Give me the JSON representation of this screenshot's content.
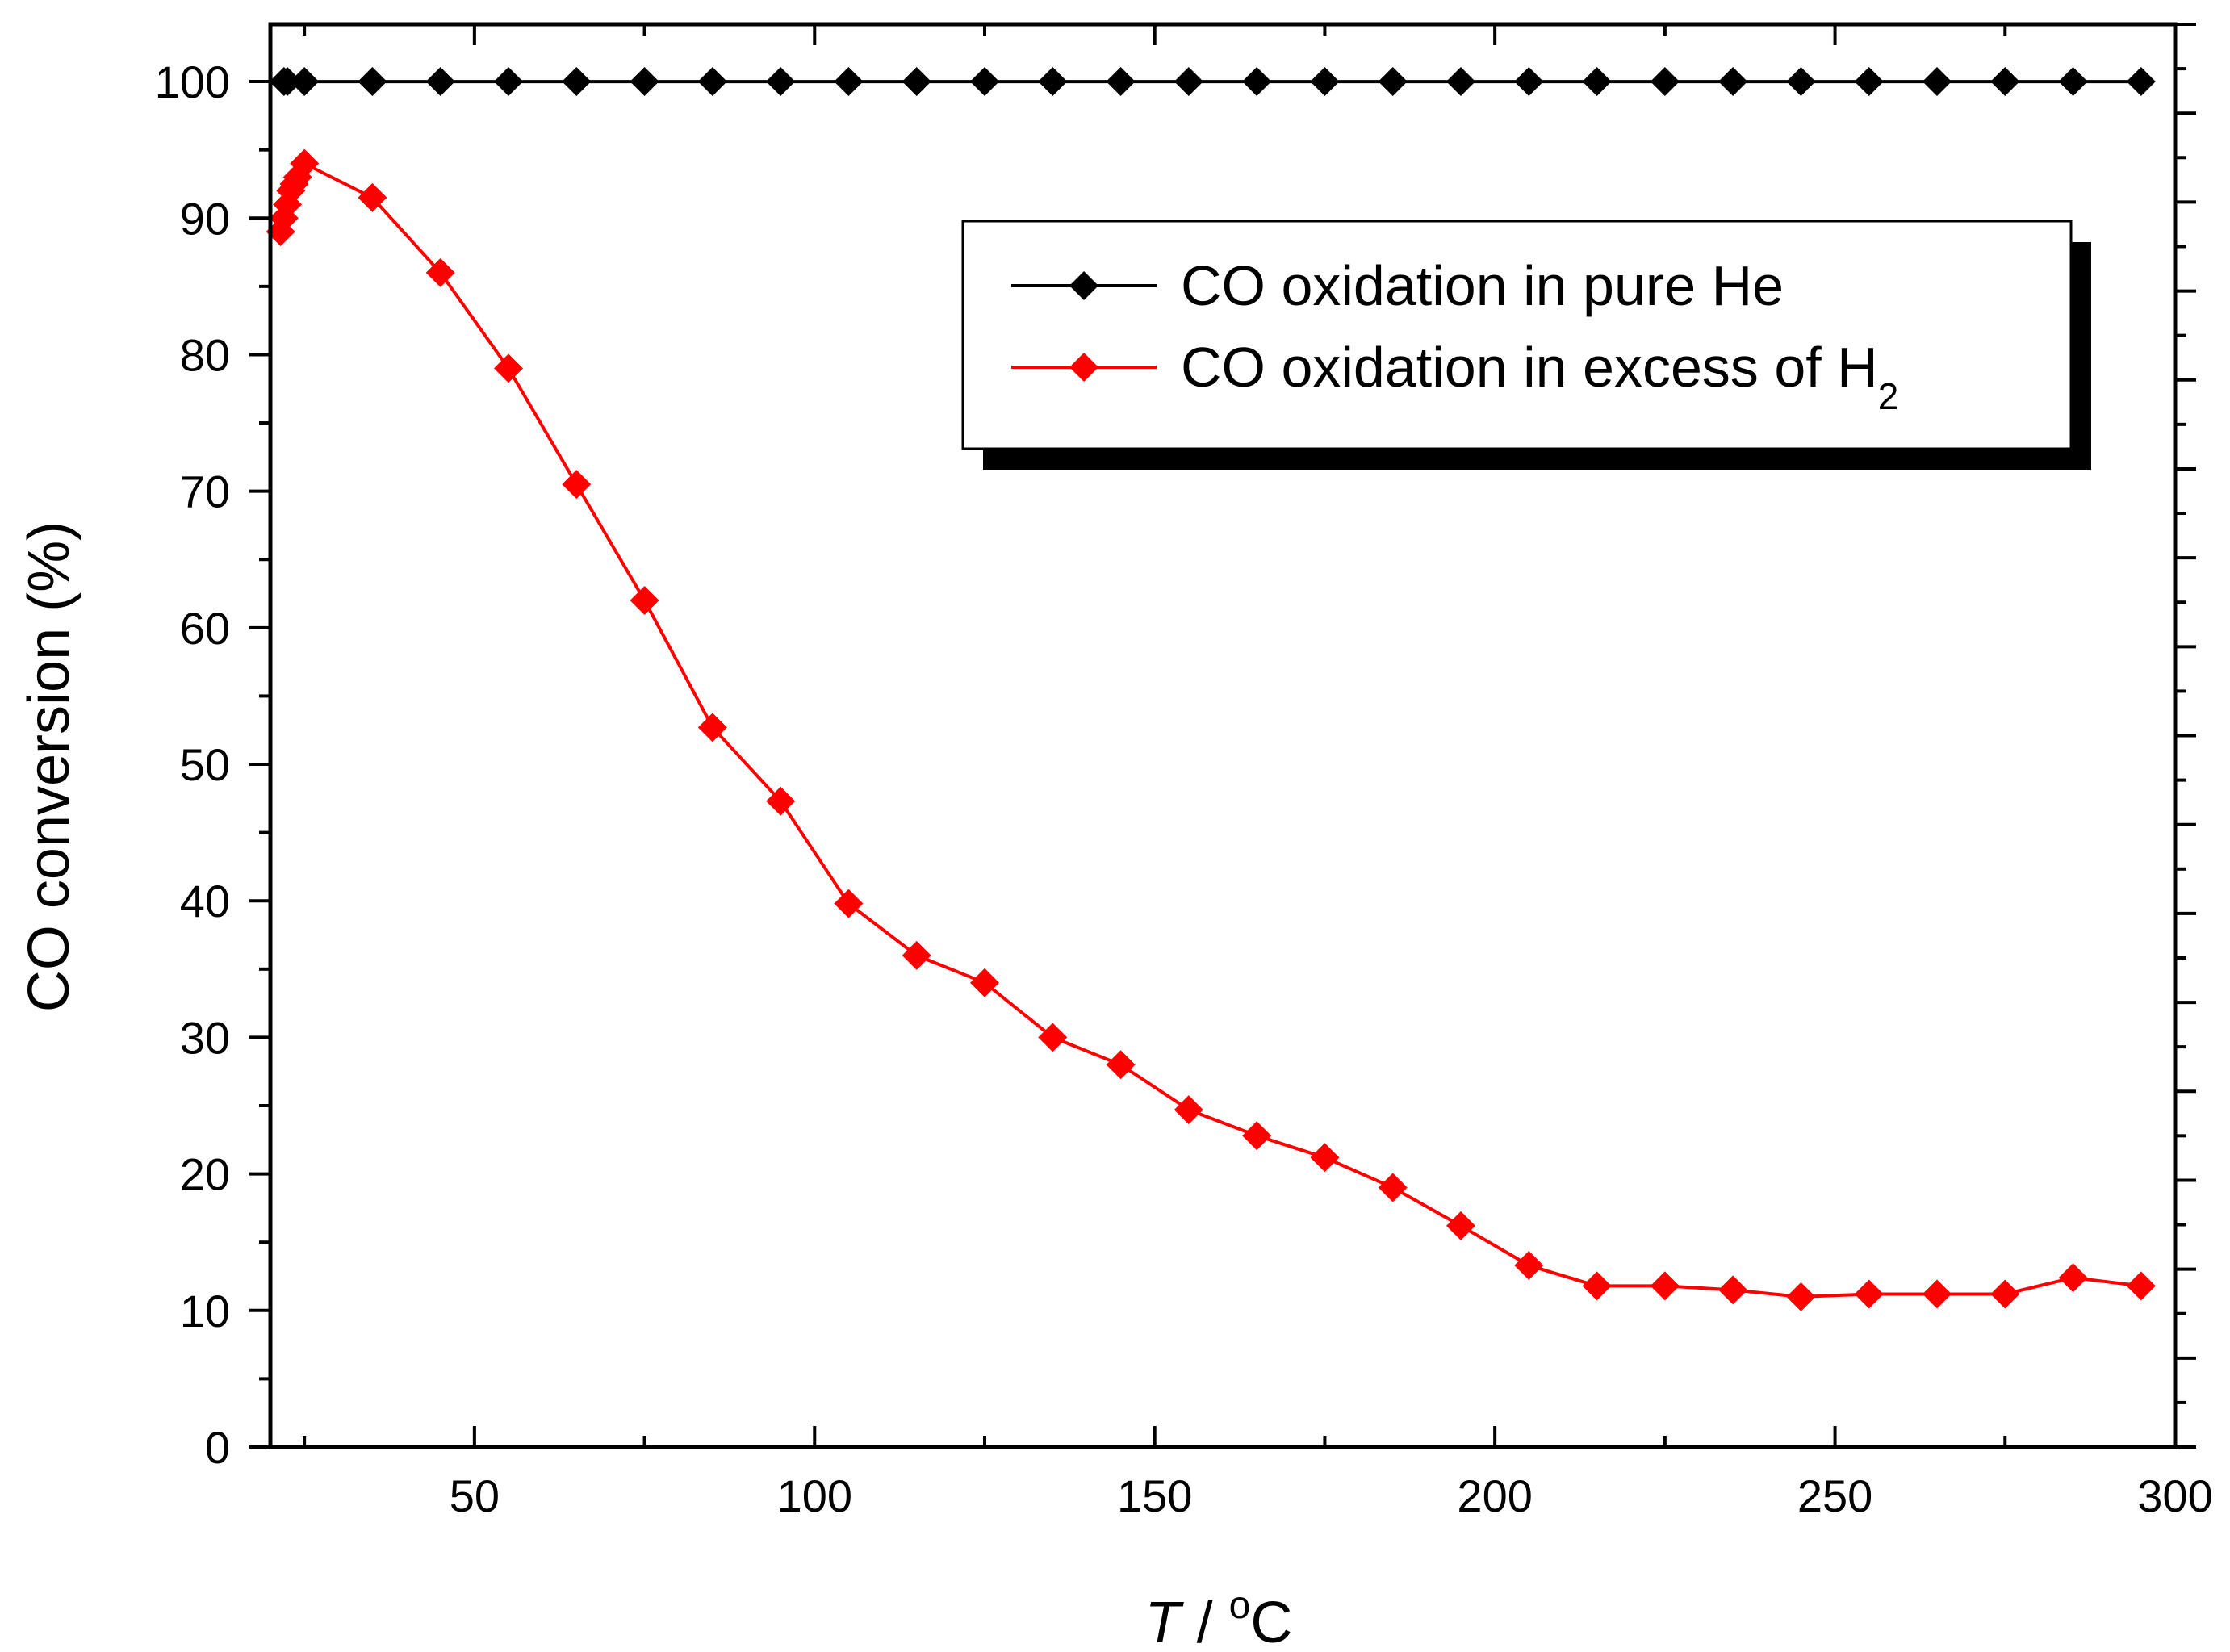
{
  "chart_data": {
    "type": "line",
    "title": "",
    "xlabel": {
      "var": "T",
      "sep": " / ",
      "deg": "o",
      "unit": "C"
    },
    "ylabel": "CO conversion (%)",
    "xlim": [
      20,
      300
    ],
    "ylim": [
      0,
      104.2
    ],
    "xticks": [
      50,
      100,
      150,
      200,
      250,
      300
    ],
    "xtick_labels": [
      "50",
      "100",
      "150",
      "200",
      "250",
      "300"
    ],
    "yticks": [
      0,
      10,
      20,
      30,
      40,
      50,
      60,
      70,
      80,
      90,
      100
    ],
    "ytick_labels": [
      "0",
      "10",
      "20",
      "30",
      "40",
      "50",
      "60",
      "70",
      "80",
      "90",
      "100"
    ],
    "grid": false,
    "legend_position": "top-right",
    "series": [
      {
        "name": "CO oxidation in pure He",
        "color": "#000000",
        "marker": "diamond",
        "x": [
          22,
          22.5,
          25,
          35,
          45,
          55,
          65,
          75,
          85,
          95,
          105,
          115,
          125,
          135,
          145,
          155,
          165,
          175,
          185,
          195,
          205,
          215,
          225,
          235,
          245,
          255,
          265,
          275,
          285,
          295
        ],
        "y": [
          100,
          100,
          100,
          100,
          100,
          100,
          100,
          100,
          100,
          100,
          100,
          100,
          100,
          100,
          100,
          100,
          100,
          100,
          100,
          100,
          100,
          100,
          100,
          100,
          100,
          100,
          100,
          100,
          100,
          100
        ]
      },
      {
        "name": "CO oxidation in excess of H",
        "name_sub": "2",
        "color": "#ff0000",
        "marker": "diamond",
        "x": [
          21.5,
          22,
          22.5,
          23,
          23.5,
          24,
          25,
          35,
          45,
          55,
          65,
          75,
          85,
          95,
          105,
          115,
          125,
          135,
          145,
          155,
          165,
          175,
          185,
          195,
          205,
          215,
          225,
          235,
          245,
          255,
          265,
          275,
          285,
          295
        ],
        "y": [
          89,
          90,
          91,
          92,
          92.5,
          93,
          94,
          91.5,
          86,
          79,
          70.5,
          62,
          52.7,
          47.3,
          39.8,
          36,
          34,
          30,
          28,
          24.7,
          22.8,
          21.2,
          19,
          16.2,
          13.3,
          11.8,
          11.8,
          11.5,
          11,
          11.2,
          11.2,
          11.2,
          12.4,
          11.8
        ]
      }
    ]
  }
}
